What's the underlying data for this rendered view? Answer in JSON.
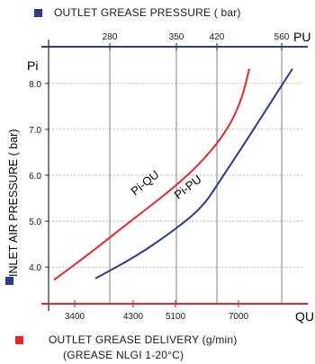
{
  "chart_data": {
    "type": "line",
    "top_axis": {
      "title": "OUTLET GREASE PRESSURE ( bar)",
      "end_label": "PU",
      "ticks": [
        {
          "value": 280,
          "label": "280"
        },
        {
          "value": 350,
          "label": "350"
        },
        {
          "value": 420,
          "label": "420"
        },
        {
          "value": 560,
          "label": "560"
        }
      ],
      "color": "#2e3a8c"
    },
    "bottom_axis": {
      "title_line1": "OUTLET GREASE DELIVERY (g/min)",
      "title_line2": "(GREASE NLGI 1-20°C)",
      "end_label": "QU",
      "ticks": [
        {
          "value": 3400,
          "label": "3400"
        },
        {
          "value": 4300,
          "label": "4300"
        },
        {
          "value": 5100,
          "label": "5100"
        },
        {
          "value": 7000,
          "label": "7000"
        }
      ],
      "color": "#e8262b"
    },
    "y_axis": {
      "title": "INLET AIR PRESSURE ( bar)",
      "end_label": "Pi",
      "ticks": [
        4.0,
        5.0,
        6.0,
        7.0,
        8.0
      ],
      "tick_labels": [
        "4.0",
        "5.0",
        "6.0",
        "7.0",
        "8.0"
      ],
      "range": [
        3.2,
        8.8
      ]
    },
    "series": [
      {
        "name": "Pi-QU",
        "color": "#e8262b",
        "points": [
          [
            3.75,
            3.75
          ],
          [
            4.5,
            4.5
          ],
          [
            5.2,
            5.2
          ],
          [
            5.8,
            5.8
          ],
          [
            6.4,
            6.4
          ],
          [
            7.0,
            7.0
          ],
          [
            7.6,
            7.6
          ],
          [
            8.3,
            8.3
          ]
        ]
      },
      {
        "name": "Pi-PU",
        "color": "#2e3a8c",
        "points": [
          [
            3.75,
            3.75
          ],
          [
            4.3,
            4.3
          ],
          [
            4.8,
            4.8
          ],
          [
            5.4,
            5.4
          ],
          [
            6.0,
            6.0
          ],
          [
            6.8,
            6.8
          ],
          [
            7.5,
            7.5
          ],
          [
            8.3,
            8.3
          ]
        ]
      }
    ]
  },
  "colors": {
    "axis": "#2a2a2a",
    "grid": "#4a4a4a",
    "red": "#e8262b",
    "blue": "#2e3a8c"
  }
}
